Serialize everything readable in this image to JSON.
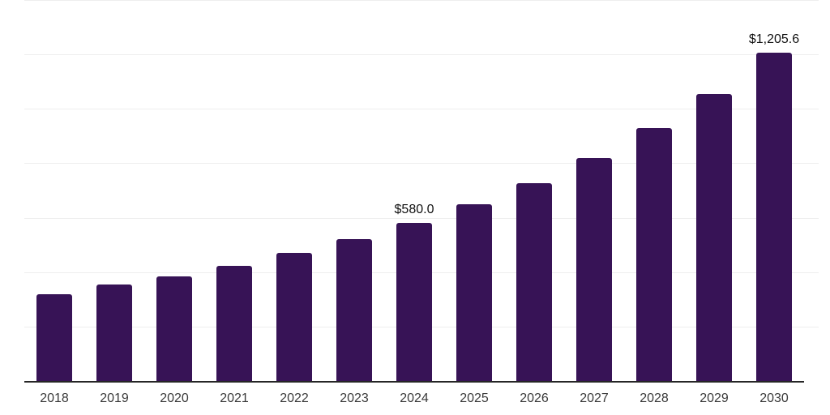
{
  "chart_data": {
    "type": "bar",
    "categories": [
      "2018",
      "2019",
      "2020",
      "2021",
      "2022",
      "2023",
      "2024",
      "2025",
      "2026",
      "2027",
      "2028",
      "2029",
      "2030"
    ],
    "values": [
      320,
      353,
      383,
      422,
      470,
      520,
      580.0,
      648,
      728,
      820,
      930,
      1055,
      1205.6
    ],
    "value_labels": {
      "2024": "$580.0",
      "2030": "$1,205.6"
    },
    "labeled_points_note": "only 2024 and 2030 carry on-chart data labels; other values estimated from gridlines",
    "ylim": [
      0,
      1400
    ],
    "grid_step": 200,
    "grid": "on",
    "legend": "none",
    "y_axis_tick_labels": "none",
    "colors": {
      "bar": "#371356",
      "gridline": "#eeeeee",
      "axis_line": "#262626",
      "tick_label": "#3a3a3a",
      "value_label": "#111111",
      "background": "#ffffff"
    }
  }
}
